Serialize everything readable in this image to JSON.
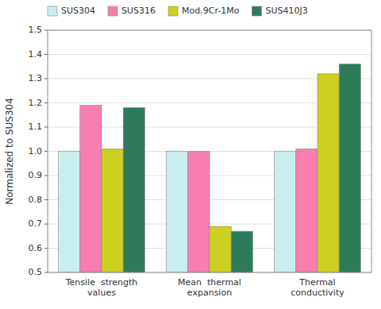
{
  "chart_data": {
    "type": "bar",
    "categories": [
      "Tensile  strength\nvalues",
      "Mean  thermal\nexpansion",
      "Thermal\nconductivity"
    ],
    "series": [
      {
        "name": "SUS304",
        "color": "#c8eef0",
        "values": [
          1.0,
          1.0,
          1.0
        ]
      },
      {
        "name": "SUS316",
        "color": "#f87eb0",
        "values": [
          1.19,
          1.0,
          1.01
        ]
      },
      {
        "name": "Mod.9Cr-1Mo",
        "color": "#ccd020",
        "values": [
          1.01,
          0.69,
          1.32
        ]
      },
      {
        "name": "SUS410J3",
        "color": "#2e7b5c",
        "values": [
          1.18,
          0.67,
          1.36
        ]
      }
    ],
    "ylabel": "Normalized to SUS304",
    "ylim": [
      0.5,
      1.5
    ],
    "yticks": [
      0.5,
      0.6,
      0.7,
      0.8,
      0.9,
      {
        "value": 1.0,
        "label": "1.0"
      },
      1.1,
      1.2,
      1.3,
      1.4,
      1.5
    ],
    "grid": true,
    "legend": "top-left"
  }
}
